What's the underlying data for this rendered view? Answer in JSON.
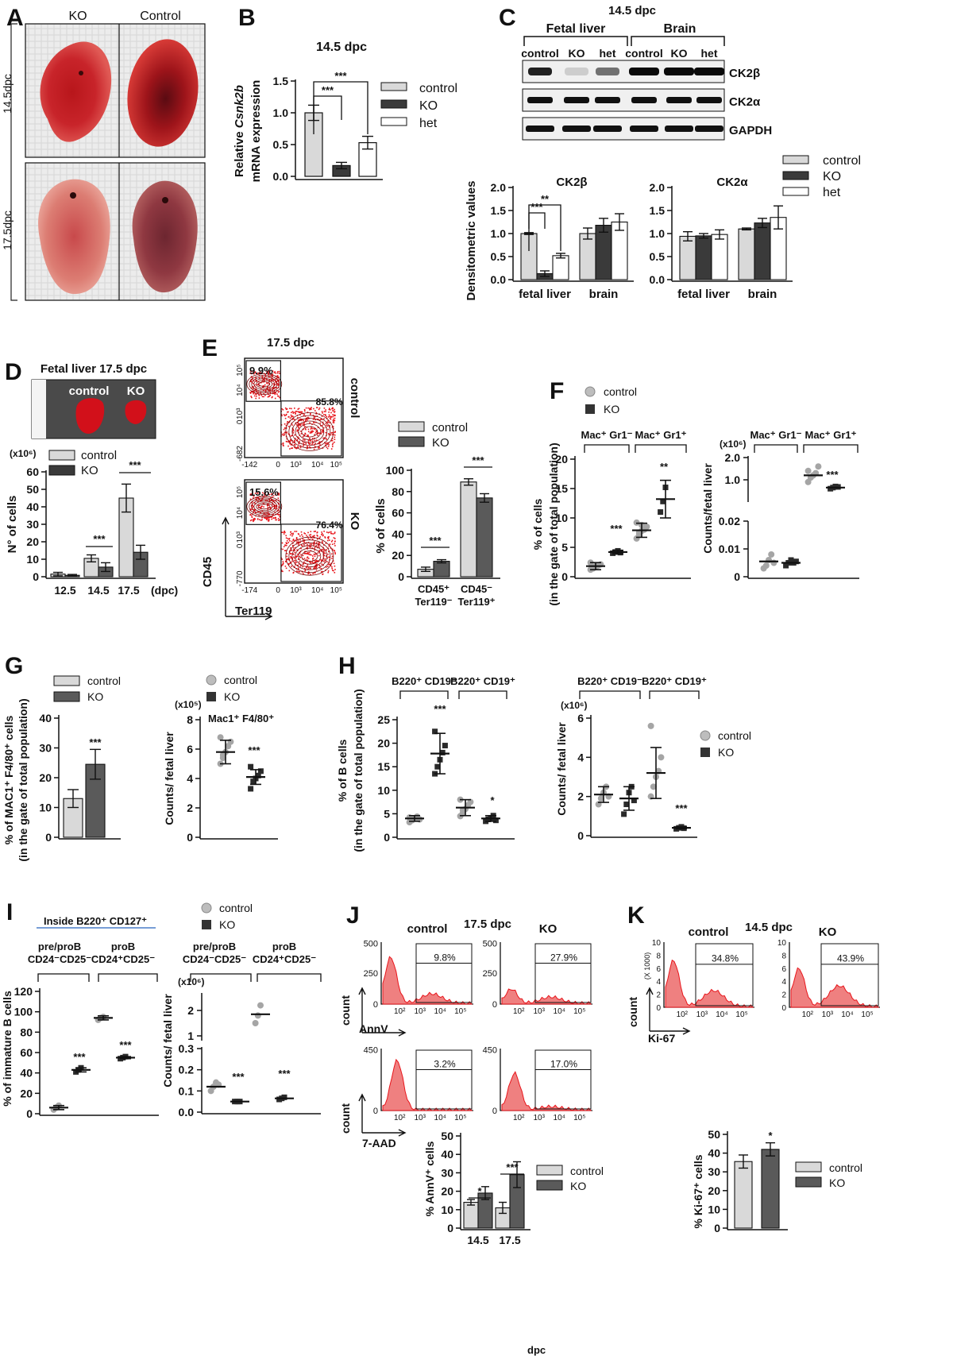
{
  "panels": {
    "A": "A",
    "B": "B",
    "C": "C",
    "D": "D",
    "E": "E",
    "F": "F",
    "G": "G",
    "H": "H",
    "I": "I",
    "J": "J",
    "K": "K"
  },
  "A": {
    "col_ko": "KO",
    "col_control": "Control",
    "row1": "14.5dpc",
    "row2": "17.5dpc"
  },
  "B": {
    "title": "14.5 dpc",
    "ylabel_pre": "Relative ",
    "ylabel_gene": "Csnk2b",
    "ylabel2": "mRNA expression"
  },
  "C": {
    "title": "14.5 dpc",
    "group1": "Fetal liver",
    "group2": "Brain",
    "lanes": [
      "control",
      "KO",
      "het",
      "control",
      "KO",
      "het"
    ],
    "blots": [
      "CK2β",
      "CK2α",
      "GAPDH"
    ],
    "ylabel": "Densitometric values",
    "sub1": "CK2β",
    "sub2": "CK2α"
  },
  "D": {
    "title": "Fetal liver 17.5 dpc",
    "photo_control": "control",
    "photo_ko": "KO",
    "multiplier": "(x10⁶)",
    "dpc_label": "(dpc)"
  },
  "E": {
    "title": "17.5 dpc",
    "ctrl_tag": "control",
    "ko_tag": "KO",
    "q_ctrl_1": "9.9%",
    "q_ctrl_2": "85.8%",
    "q_ko_1": "15.6%",
    "q_ko_2": "76.4%",
    "yaxis": "CD45",
    "xaxis": "Ter119",
    "yticks": [
      "10⁵",
      "10⁴",
      "10³",
      "0",
      "-682"
    ],
    "yticks2": [
      "10⁵",
      "10⁴",
      "10³",
      "0",
      "-770"
    ],
    "xticks": [
      "-142",
      "0",
      "10³",
      "10⁴",
      "10⁵"
    ],
    "xticks2": [
      "-174",
      "0",
      "10³",
      "10⁴",
      "10⁵"
    ]
  },
  "F": {
    "left_group1": "Mac⁺ Gr1⁻",
    "left_group2": "Mac⁺ Gr1⁺",
    "right_group1": "Mac⁺ Gr1⁻",
    "right_group2": "Mac⁺ Gr1⁺",
    "multiplier": "(x10⁶)"
  },
  "G": {
    "right_title": "Mac1⁺ F4/80⁺",
    "multiplier": "(x10⁵)"
  },
  "H": {
    "g1": "B220⁺ CD19⁻",
    "g2": "B220⁺ CD19⁺",
    "multiplier": "(x10⁶)"
  },
  "I": {
    "gate": "Inside B220⁺ CD127⁺",
    "g1a": "pre/proB",
    "g1b": "CD24⁻CD25⁻",
    "g2a": "proB",
    "g2b": "CD24⁺CD25⁻",
    "multiplier": "(x10⁶)"
  },
  "J": {
    "title": "17.5 dpc",
    "ctrl": "control",
    "ko": "KO",
    "annv": "AnnV",
    "aad": "7-AAD",
    "count": "count",
    "p1": "9.8%",
    "p2": "27.9%",
    "p3": "3.2%",
    "p4": "17.0%",
    "yt1": [
      "500",
      "250",
      "0"
    ],
    "yt2": [
      "450",
      "0"
    ],
    "xt": [
      "10²",
      "10³",
      "10⁴",
      "10⁵"
    ],
    "dpc": "dpc"
  },
  "K": {
    "title": "14.5 dpc",
    "ctrl": "control",
    "ko": "KO",
    "marker": "Ki-67",
    "count": "count",
    "p1": "34.8%",
    "p2": "43.9%",
    "yt": [
      "10",
      "8",
      "6",
      "4",
      "2",
      "0"
    ],
    "yunit": "(X 1000)",
    "xt": [
      "10²",
      "10³",
      "10⁴",
      "10⁵"
    ]
  },
  "legend": {
    "control": "control",
    "ko": "KO",
    "het": "het"
  },
  "colors": {
    "control": "#d9d9d9",
    "ko": "#3a3a3a",
    "het": "#ffffff",
    "flow": "#e8151b"
  },
  "chart_data": [
    {
      "id": "B",
      "type": "bar",
      "categories": [
        "control",
        "KO",
        "het"
      ],
      "values": [
        1.0,
        0.17,
        0.53
      ],
      "errors": [
        0.12,
        0.05,
        0.1
      ],
      "ylabel": "Relative Csnk2b mRNA expression",
      "ylim": [
        0,
        1.5
      ],
      "yticks": [
        0.0,
        0.5,
        1.0,
        1.5
      ],
      "sig": [
        [
          "control",
          "KO",
          "***"
        ],
        [
          "control",
          "het",
          "***"
        ]
      ]
    },
    {
      "id": "C-CK2b",
      "type": "bar",
      "title": "CK2β",
      "categories": [
        "fetal liver",
        "brain"
      ],
      "series": [
        {
          "name": "control",
          "values": [
            1.0,
            1.0
          ]
        },
        {
          "name": "KO",
          "values": [
            0.13,
            1.18
          ]
        },
        {
          "name": "het",
          "values": [
            0.52,
            1.25
          ]
        }
      ],
      "errors": [
        [
          0.02,
          0.12
        ],
        [
          0.06,
          0.15
        ],
        [
          0.05,
          0.18
        ]
      ],
      "ylim": [
        0,
        2
      ],
      "yticks": [
        0.0,
        0.5,
        1.0,
        1.5,
        2.0
      ],
      "sig": [
        "***",
        "**"
      ]
    },
    {
      "id": "C-CK2a",
      "type": "bar",
      "title": "CK2α",
      "categories": [
        "fetal liver",
        "brain"
      ],
      "series": [
        {
          "name": "control",
          "values": [
            0.94,
            1.1
          ]
        },
        {
          "name": "KO",
          "values": [
            0.95,
            1.23
          ]
        },
        {
          "name": "het",
          "values": [
            0.98,
            1.35
          ]
        }
      ],
      "errors": [
        [
          0.1,
          0.02
        ],
        [
          0.05,
          0.1
        ],
        [
          0.1,
          0.25
        ]
      ],
      "ylim": [
        0,
        2
      ],
      "yticks": [
        0.0,
        0.5,
        1.0,
        1.5,
        2.0
      ]
    },
    {
      "id": "D",
      "type": "bar",
      "categories": [
        "12.5",
        "14.5",
        "17.5"
      ],
      "series": [
        {
          "name": "control",
          "values": [
            1.5,
            10.5,
            45
          ]
        },
        {
          "name": "KO",
          "values": [
            0.8,
            5.5,
            14
          ]
        }
      ],
      "errors": [
        [
          1,
          2,
          8
        ],
        [
          0.5,
          2.5,
          4
        ]
      ],
      "ylabel": "N° of cells",
      "ylim": [
        0,
        60
      ],
      "yticks": [
        0,
        10,
        20,
        30,
        40,
        50,
        60
      ],
      "sig": [
        "***",
        "***"
      ]
    },
    {
      "id": "E",
      "type": "bar",
      "categories": [
        "CD45⁺ Ter119⁻",
        "CD45⁻ Ter119⁺"
      ],
      "series": [
        {
          "name": "control",
          "values": [
            7,
            89
          ]
        },
        {
          "name": "KO",
          "values": [
            14.5,
            74
          ]
        }
      ],
      "errors": [
        [
          2,
          3
        ],
        [
          1.5,
          4
        ]
      ],
      "ylabel": "% of cells",
      "ylim": [
        0,
        100
      ],
      "yticks": [
        0,
        20,
        40,
        60,
        80,
        100
      ],
      "sig": [
        "***",
        "***"
      ]
    },
    {
      "id": "F-left",
      "type": "scatter",
      "ylabel": "% of cells (in the gate of total population)",
      "ylim": [
        0,
        20
      ],
      "yticks": [
        0,
        5,
        10,
        15,
        20
      ],
      "groups": [
        {
          "name": "control",
          "mean": 1.8,
          "sd": 0.6,
          "points": [
            1.2,
            1.5,
            1.7,
            1.9,
            2.1,
            2.4,
            1.4,
            1.8
          ]
        },
        {
          "name": "KO",
          "mean": 4.2,
          "sd": 0.3,
          "points": [
            4.0,
            4.2,
            4.4,
            4.1
          ]
        },
        {
          "name": "control",
          "mean": 7.9,
          "sd": 1.2,
          "points": [
            6.5,
            7.2,
            7.8,
            8.0,
            8.5,
            9.2,
            7.5,
            8.8
          ]
        },
        {
          "name": "KO",
          "mean": 13.2,
          "sd": 3.2,
          "points": [
            11,
            12.8,
            15.2
          ]
        }
      ],
      "sig": [
        "***",
        "**"
      ]
    },
    {
      "id": "F-right",
      "type": "scatter",
      "ylabel": "Counts/fetal liver",
      "yticks": [
        "0",
        "0.01",
        "0.02",
        "1.0",
        "2.0"
      ],
      "groups": [
        {
          "name": "control",
          "mean": 0.0055,
          "points": [
            0.003,
            0.004,
            0.006,
            0.008,
            0.005
          ]
        },
        {
          "name": "KO",
          "mean": 0.005,
          "points": [
            0.004,
            0.005,
            0.006,
            0.005,
            0.0055
          ]
        },
        {
          "name": "control",
          "mean": 1.2,
          "points": [
            0.9,
            1.1,
            1.2,
            1.3,
            1.6,
            1.4
          ]
        },
        {
          "name": "KO",
          "mean": 0.65,
          "points": [
            0.6,
            0.65,
            0.7,
            0.68
          ]
        }
      ],
      "sig": [
        "***"
      ]
    },
    {
      "id": "G-left",
      "type": "bar",
      "categories": [
        "control",
        "KO"
      ],
      "values": [
        13,
        24.5
      ],
      "errors": [
        3,
        5
      ],
      "ylabel": "% of MAC1⁺ F4/80⁺ cells (in the gate of total population)",
      "ylim": [
        0,
        40
      ],
      "yticks": [
        0,
        10,
        20,
        30,
        40
      ],
      "sig": [
        "***"
      ]
    },
    {
      "id": "G-right",
      "type": "scatter",
      "ylabel": "Counts/ fetal liver",
      "ylim": [
        0,
        8
      ],
      "yticks": [
        0,
        2,
        4,
        6,
        8
      ],
      "groups": [
        {
          "name": "control",
          "mean": 5.8,
          "sd": 0.8,
          "points": [
            5.0,
            5.4,
            5.8,
            6.2,
            6.5,
            6.8,
            5.6
          ]
        },
        {
          "name": "KO",
          "mean": 4.1,
          "sd": 0.5,
          "points": [
            3.3,
            3.8,
            4.0,
            4.2,
            4.5,
            4.8
          ]
        }
      ],
      "sig": [
        "***"
      ]
    },
    {
      "id": "H-left",
      "type": "scatter",
      "ylabel": "% of B cells (in the gate of total population)",
      "ylim": [
        0,
        25
      ],
      "yticks": [
        0,
        5,
        10,
        15,
        20,
        25
      ],
      "groups": [
        {
          "name": "control",
          "mean": 4,
          "sd": 0.6,
          "points": [
            3.2,
            3.6,
            4.0,
            4.4,
            3.8,
            4.2
          ]
        },
        {
          "name": "KO",
          "mean": 17.8,
          "sd": 4.3,
          "points": [
            13.5,
            15,
            16.5,
            18,
            19.5,
            22.5
          ]
        },
        {
          "name": "control",
          "mean": 6.3,
          "sd": 1.7,
          "points": [
            4.5,
            5.2,
            6.0,
            6.8,
            7.5,
            8.0,
            5.8
          ]
        },
        {
          "name": "KO",
          "mean": 4,
          "sd": 0.6,
          "points": [
            3.4,
            3.8,
            4.1,
            4.6,
            3.6
          ]
        }
      ],
      "sig": [
        "***",
        "*"
      ]
    },
    {
      "id": "H-right",
      "type": "scatter",
      "ylabel": "Counts/ fetal liver",
      "ylim": [
        0,
        6
      ],
      "yticks": [
        0,
        2,
        4,
        6
      ],
      "groups": [
        {
          "name": "control",
          "mean": 2.1,
          "sd": 0.4,
          "points": [
            1.6,
            1.9,
            2.2,
            2.5,
            2.0
          ]
        },
        {
          "name": "KO",
          "mean": 1.9,
          "sd": 0.6,
          "points": [
            1.1,
            1.6,
            2.2,
            2.5,
            1.8
          ]
        },
        {
          "name": "control",
          "mean": 3.2,
          "sd": 1.3,
          "points": [
            2.0,
            2.5,
            3.0,
            3.3,
            4.0,
            5.6
          ]
        },
        {
          "name": "KO",
          "mean": 0.4,
          "sd": 0.05,
          "points": [
            0.35,
            0.4,
            0.45,
            0.38
          ]
        }
      ],
      "sig": [
        "***"
      ]
    },
    {
      "id": "I-left",
      "type": "scatter",
      "ylabel": "% of immature B cells",
      "ylim": [
        0,
        120
      ],
      "yticks": [
        0,
        20,
        40,
        60,
        80,
        100,
        120
      ],
      "groups": [
        {
          "name": "control",
          "mean": 6,
          "sd": 2,
          "points": [
            4,
            6,
            8
          ]
        },
        {
          "name": "KO",
          "mean": 43,
          "sd": 2,
          "points": [
            41,
            43,
            45
          ]
        },
        {
          "name": "control",
          "mean": 94,
          "sd": 2,
          "points": [
            92,
            94,
            95
          ]
        },
        {
          "name": "KO",
          "mean": 55,
          "sd": 1,
          "points": [
            54,
            55,
            56
          ]
        }
      ],
      "sig": [
        "***",
        "***"
      ]
    },
    {
      "id": "I-right",
      "type": "scatter",
      "ylabel": "Counts/ fetal liver",
      "yticks": [
        "0.0",
        "0.1",
        "0.2",
        "0.3",
        "1",
        "2"
      ],
      "groups": [
        {
          "name": "control",
          "mean": 0.12,
          "points": [
            0.1,
            0.12,
            0.14,
            0.13
          ]
        },
        {
          "name": "KO",
          "mean": 0.05,
          "points": [
            0.05,
            0.05,
            0.05
          ]
        },
        {
          "name": "control",
          "mean": 1.85,
          "points": [
            1.5,
            1.8,
            2.2
          ]
        },
        {
          "name": "KO",
          "mean": 0.065,
          "points": [
            0.06,
            0.065,
            0.07
          ]
        }
      ],
      "sig": [
        "***",
        "***"
      ]
    },
    {
      "id": "J",
      "type": "bar",
      "categories": [
        "14.5",
        "17.5"
      ],
      "series": [
        {
          "name": "control",
          "values": [
            14,
            11
          ]
        },
        {
          "name": "KO",
          "values": [
            19,
            29
          ]
        }
      ],
      "errors": [
        [
          1.5,
          3
        ],
        [
          3.5,
          7
        ]
      ],
      "ylabel": "% AnnV⁺ cells",
      "ylim": [
        0,
        50
      ],
      "yticks": [
        0,
        10,
        20,
        30,
        40,
        50
      ],
      "sig": [
        "*",
        "***"
      ]
    },
    {
      "id": "K",
      "type": "bar",
      "categories": [
        "control",
        "KO"
      ],
      "values": [
        35.5,
        42
      ],
      "errors": [
        3.5,
        3.5
      ],
      "ylabel": "% Ki-67⁺ cells",
      "ylim": [
        0,
        50
      ],
      "yticks": [
        0,
        10,
        20,
        30,
        40,
        50
      ],
      "sig": [
        "*"
      ]
    }
  ]
}
